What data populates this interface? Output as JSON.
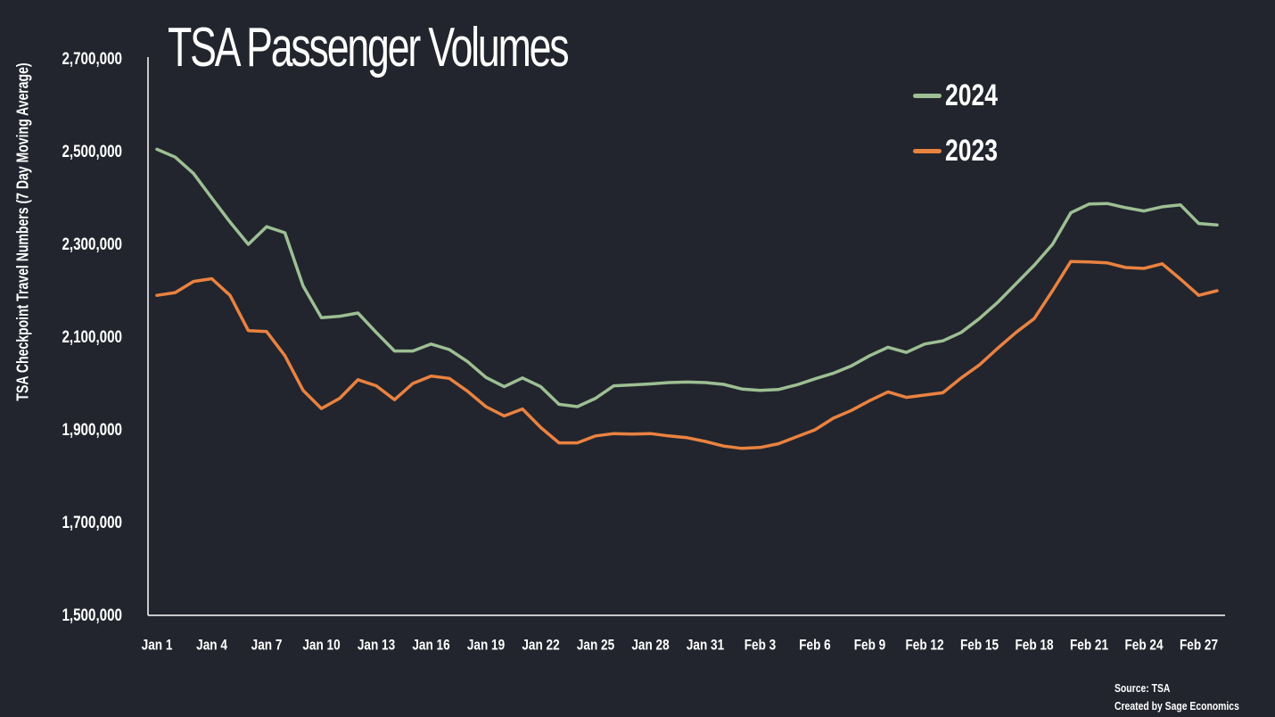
{
  "chart_data": {
    "type": "line",
    "title": "TSA Passenger Volumes",
    "ylabel": "TSA Checkpoint Travel Numbers (7 Day Moving Average)",
    "xlabel": "",
    "ylim": [
      1500000,
      2700000
    ],
    "yticks": [
      1500000,
      1700000,
      1900000,
      2100000,
      2300000,
      2500000,
      2700000
    ],
    "ytick_labels": [
      "1,500,000",
      "1,700,000",
      "1,900,000",
      "2,100,000",
      "2,300,000",
      "2,500,000",
      "2,700,000"
    ],
    "xticks": [
      {
        "index": 0,
        "label": "Jan 1"
      },
      {
        "index": 3,
        "label": "Jan 4"
      },
      {
        "index": 6,
        "label": "Jan 7"
      },
      {
        "index": 9,
        "label": "Jan 10"
      },
      {
        "index": 12,
        "label": "Jan 13"
      },
      {
        "index": 15,
        "label": "Jan 16"
      },
      {
        "index": 18,
        "label": "Jan 19"
      },
      {
        "index": 21,
        "label": "Jan 22"
      },
      {
        "index": 24,
        "label": "Jan 25"
      },
      {
        "index": 27,
        "label": "Jan 28"
      },
      {
        "index": 30,
        "label": "Jan 31"
      },
      {
        "index": 33,
        "label": "Feb 3"
      },
      {
        "index": 36,
        "label": "Feb 6"
      },
      {
        "index": 39,
        "label": "Feb 9"
      },
      {
        "index": 42,
        "label": "Feb 12"
      },
      {
        "index": 45,
        "label": "Feb 15"
      },
      {
        "index": 48,
        "label": "Feb 18"
      },
      {
        "index": 51,
        "label": "Feb 21"
      },
      {
        "index": 54,
        "label": "Feb 24"
      },
      {
        "index": 57,
        "label": "Feb 27"
      }
    ],
    "legend_position": "top-right",
    "series": [
      {
        "name": "2024",
        "color": "#9dbf94",
        "values": [
          2505000,
          2488000,
          2453000,
          2400000,
          2348000,
          2300000,
          2338000,
          2325000,
          2210000,
          2142000,
          2145000,
          2152000,
          2110000,
          2070000,
          2070000,
          2085000,
          2073000,
          2047000,
          2013000,
          1993000,
          2012000,
          1993000,
          1955000,
          1950000,
          1968000,
          1995000,
          1997000,
          1999000,
          2002000,
          2003000,
          2002000,
          1998000,
          1988000,
          1985000,
          1987000,
          1997000,
          2010000,
          2022000,
          2038000,
          2060000,
          2078000,
          2067000,
          2085000,
          2092000,
          2110000,
          2140000,
          2175000,
          2215000,
          2255000,
          2300000,
          2368000,
          2387000,
          2388000,
          2379000,
          2372000,
          2381000,
          2385000,
          2345000,
          2342000
        ]
      },
      {
        "name": "2023",
        "color": "#ea8240",
        "values": [
          2190000,
          2196000,
          2220000,
          2226000,
          2190000,
          2114000,
          2112000,
          2060000,
          1985000,
          1946000,
          1968000,
          2008000,
          1995000,
          1965000,
          2000000,
          2016000,
          2011000,
          1983000,
          1950000,
          1930000,
          1945000,
          1905000,
          1872000,
          1872000,
          1887000,
          1892000,
          1891000,
          1892000,
          1887000,
          1883000,
          1875000,
          1865000,
          1860000,
          1862000,
          1870000,
          1885000,
          1900000,
          1925000,
          1942000,
          1963000,
          1982000,
          1970000,
          1975000,
          1980000,
          2012000,
          2040000,
          2076000,
          2110000,
          2140000,
          2200000,
          2263000,
          2262000,
          2260000,
          2250000,
          2248000,
          2258000,
          2225000,
          2190000,
          2200000
        ]
      }
    ]
  },
  "source": {
    "line1": "Source: TSA",
    "line2": "Created by Sage Economics"
  }
}
